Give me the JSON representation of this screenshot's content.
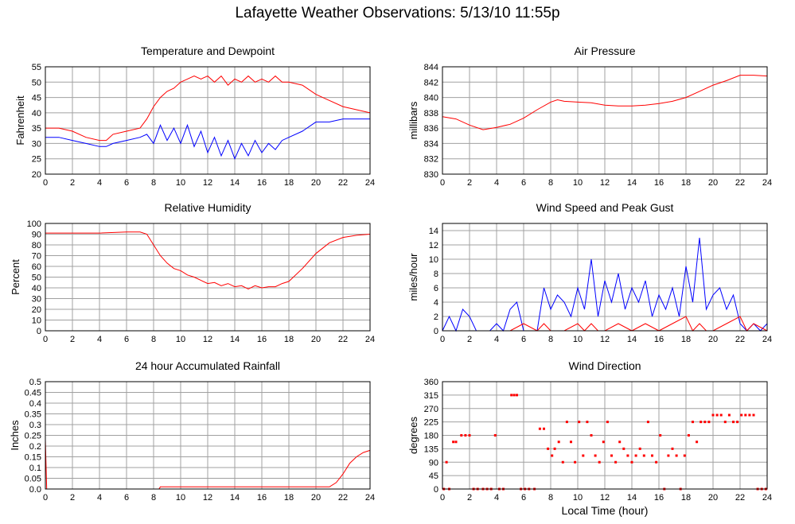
{
  "page": {
    "title": "Lafayette Weather Observations: 5/13/10 11:55p",
    "footer_xlabel": "Local Time (hour)"
  },
  "colors": {
    "red": "#ff0000",
    "blue": "#0000ff",
    "grid": "#a0a0a0",
    "frame": "#000000"
  },
  "chart_data": [
    {
      "id": "temp",
      "type": "line",
      "title": "Temperature and Dewpoint",
      "xlabel": "",
      "ylabel": "Fahrenheit",
      "xlim": [
        0,
        24
      ],
      "ylim": [
        20,
        55
      ],
      "xticks": [
        0,
        2,
        4,
        6,
        8,
        10,
        12,
        14,
        16,
        18,
        20,
        22,
        24
      ],
      "yticks": [
        20,
        25,
        30,
        35,
        40,
        45,
        50,
        55
      ],
      "grid": true,
      "series": [
        {
          "color": "#ff0000",
          "x": [
            0,
            1,
            2,
            3,
            4,
            4.5,
            5,
            6,
            7,
            7.5,
            8,
            8.5,
            9,
            9.5,
            10,
            10.5,
            11,
            11.5,
            12,
            12.5,
            13,
            13.5,
            14,
            14.5,
            15,
            15.5,
            16,
            16.5,
            17,
            17.5,
            18,
            19,
            20,
            21,
            22,
            23,
            24
          ],
          "y": [
            35,
            35,
            34,
            32,
            31,
            31,
            33,
            34,
            35,
            38,
            42,
            45,
            47,
            48,
            50,
            51,
            52,
            51,
            52,
            50,
            52,
            49,
            51,
            50,
            52,
            50,
            51,
            50,
            52,
            50,
            50,
            49,
            46,
            44,
            42,
            41,
            40
          ]
        },
        {
          "color": "#0000ff",
          "x": [
            0,
            1,
            2,
            3,
            4,
            4.5,
            5,
            6,
            7,
            7.5,
            8,
            8.5,
            9,
            9.5,
            10,
            10.5,
            11,
            11.5,
            12,
            12.5,
            13,
            13.5,
            14,
            14.5,
            15,
            15.5,
            16,
            16.5,
            17,
            17.5,
            18,
            19,
            20,
            21,
            22,
            23,
            24
          ],
          "y": [
            32,
            32,
            31,
            30,
            29,
            29,
            30,
            31,
            32,
            33,
            30,
            36,
            31,
            35,
            30,
            36,
            29,
            34,
            27,
            32,
            26,
            31,
            25,
            30,
            26,
            31,
            27,
            30,
            28,
            31,
            32,
            34,
            37,
            37,
            38,
            38,
            38
          ]
        }
      ]
    },
    {
      "id": "pressure",
      "type": "line",
      "title": "Air Pressure",
      "xlabel": "",
      "ylabel": "millibars",
      "xlim": [
        0,
        24
      ],
      "ylim": [
        830,
        844
      ],
      "xticks": [
        0,
        2,
        4,
        6,
        8,
        10,
        12,
        14,
        16,
        18,
        20,
        22,
        24
      ],
      "yticks": [
        830,
        832,
        834,
        836,
        838,
        840,
        842,
        844
      ],
      "grid": true,
      "series": [
        {
          "color": "#ff0000",
          "x": [
            0,
            1,
            2,
            3,
            4,
            5,
            6,
            7,
            8,
            8.5,
            9,
            10,
            11,
            12,
            13,
            14,
            15,
            16,
            17,
            18,
            19,
            20,
            21,
            22,
            23,
            24
          ],
          "y": [
            837.5,
            837.2,
            836.4,
            835.8,
            836.1,
            836.5,
            837.3,
            838.4,
            839.4,
            839.7,
            839.5,
            839.4,
            839.3,
            839.0,
            838.9,
            838.9,
            839.0,
            839.2,
            839.5,
            840.0,
            840.8,
            841.6,
            842.2,
            842.9,
            842.9,
            842.8
          ]
        }
      ]
    },
    {
      "id": "humidity",
      "type": "line",
      "title": "Relative Humidity",
      "xlabel": "",
      "ylabel": "Percent",
      "xlim": [
        0,
        24
      ],
      "ylim": [
        0,
        100
      ],
      "xticks": [
        0,
        2,
        4,
        6,
        8,
        10,
        12,
        14,
        16,
        18,
        20,
        22,
        24
      ],
      "yticks": [
        0,
        10,
        20,
        30,
        40,
        50,
        60,
        70,
        80,
        90,
        100
      ],
      "grid": true,
      "series": [
        {
          "color": "#ff0000",
          "x": [
            0,
            2,
            4,
            6,
            7,
            7.5,
            8,
            8.5,
            9,
            9.5,
            10,
            10.5,
            11,
            11.5,
            12,
            12.5,
            13,
            13.5,
            14,
            14.5,
            15,
            15.5,
            16,
            16.5,
            17,
            17.5,
            18,
            19,
            20,
            21,
            22,
            23,
            24
          ],
          "y": [
            91,
            91,
            91,
            92,
            92,
            90,
            80,
            70,
            63,
            58,
            56,
            52,
            50,
            47,
            44,
            45,
            42,
            44,
            41,
            42,
            39,
            42,
            40,
            41,
            41,
            44,
            46,
            58,
            72,
            82,
            87,
            89,
            90
          ]
        }
      ]
    },
    {
      "id": "wind",
      "type": "line",
      "title": "Wind Speed and Peak Gust",
      "xlabel": "",
      "ylabel": "miles/hour",
      "xlim": [
        0,
        24
      ],
      "ylim": [
        0,
        15
      ],
      "xticks": [
        0,
        2,
        4,
        6,
        8,
        10,
        12,
        14,
        16,
        18,
        20,
        22,
        24
      ],
      "yticks": [
        0,
        2,
        4,
        6,
        8,
        10,
        12,
        14
      ],
      "grid": true,
      "series": [
        {
          "color": "#0000ff",
          "x": [
            0,
            0.5,
            1,
            1.5,
            2,
            2.5,
            3,
            3.5,
            4,
            4.5,
            5,
            5.5,
            6,
            6.5,
            7,
            7.5,
            8,
            8.5,
            9,
            9.5,
            10,
            10.5,
            11,
            11.5,
            12,
            12.5,
            13,
            13.5,
            14,
            14.5,
            15,
            15.5,
            16,
            16.5,
            17,
            17.5,
            18,
            18.5,
            19,
            19.5,
            20,
            20.5,
            21,
            21.5,
            22,
            22.5,
            23,
            23.5,
            24
          ],
          "y": [
            0,
            2,
            0,
            3,
            2,
            0,
            0,
            0,
            1,
            0,
            3,
            4,
            0,
            0,
            0,
            6,
            3,
            5,
            4,
            2,
            6,
            3,
            10,
            2,
            7,
            4,
            8,
            3,
            6,
            4,
            7,
            2,
            5,
            3,
            6,
            2,
            9,
            4,
            13,
            3,
            5,
            6,
            3,
            5,
            1,
            0,
            1,
            0,
            1
          ]
        },
        {
          "color": "#ff0000",
          "x": [
            0,
            1,
            2,
            3,
            4,
            5,
            6,
            7,
            7.5,
            8,
            9,
            10,
            10.5,
            11,
            11.5,
            12,
            13,
            14,
            15,
            16,
            17,
            18,
            18.5,
            19,
            19.5,
            20,
            21,
            22,
            22.5,
            23,
            24
          ],
          "y": [
            0,
            0,
            0,
            0,
            0,
            0,
            1,
            0,
            1,
            0,
            0,
            1,
            0,
            1,
            0,
            0,
            1,
            0,
            1,
            0,
            1,
            2,
            0,
            1,
            0,
            0,
            1,
            2,
            0,
            1,
            0
          ]
        }
      ]
    },
    {
      "id": "rain",
      "type": "line",
      "title": "24 hour Accumulated Rainfall",
      "xlabel": "",
      "ylabel": "Inches",
      "xlim": [
        0,
        24
      ],
      "ylim": [
        0,
        0.5
      ],
      "xticks": [
        0,
        2,
        4,
        6,
        8,
        10,
        12,
        14,
        16,
        18,
        20,
        22,
        24
      ],
      "yticks": [
        0,
        0.05,
        0.1,
        0.15,
        0.2,
        0.25,
        0.3,
        0.35,
        0.4,
        0.45,
        0.5
      ],
      "ytick_labels": [
        "0.0",
        "0.05",
        "0.1",
        "0.15",
        "0.2",
        "0.25",
        "0.3",
        "0.35",
        "0.4",
        "0.45",
        "0.5"
      ],
      "grid": true,
      "series": [
        {
          "color": "#ff0000",
          "x": [
            0,
            0.1,
            0.2,
            8.4,
            8.5,
            21,
            21.5,
            22,
            22.5,
            23,
            23.5,
            24
          ],
          "y": [
            0.23,
            0.0,
            0.0,
            0.0,
            0.01,
            0.01,
            0.03,
            0.07,
            0.12,
            0.15,
            0.17,
            0.18
          ]
        }
      ]
    },
    {
      "id": "direction",
      "type": "scatter",
      "title": "Wind Direction",
      "xlabel": "Local Time (hour)",
      "ylabel": "degrees",
      "xlim": [
        0,
        24
      ],
      "ylim": [
        0,
        360
      ],
      "xticks": [
        0,
        2,
        4,
        6,
        8,
        10,
        12,
        14,
        16,
        18,
        20,
        22,
        24
      ],
      "yticks": [
        0,
        45,
        90,
        135,
        180,
        225,
        270,
        315,
        360
      ],
      "grid": true,
      "series": [
        {
          "color": "#ff0000",
          "x": [
            0.1,
            0.3,
            0.5,
            0.8,
            1.0,
            1.4,
            1.7,
            2.0,
            2.3,
            2.6,
            3.0,
            3.3,
            3.6,
            3.9,
            4.2,
            4.5,
            5.1,
            5.3,
            5.5,
            5.8,
            6.1,
            6.4,
            6.8,
            7.2,
            7.5,
            7.8,
            8.1,
            8.3,
            8.6,
            8.9,
            9.2,
            9.5,
            9.8,
            10.1,
            10.4,
            10.7,
            11.0,
            11.3,
            11.6,
            11.9,
            12.2,
            12.5,
            12.8,
            13.1,
            13.4,
            13.7,
            14.0,
            14.3,
            14.6,
            14.9,
            15.2,
            15.5,
            15.8,
            16.1,
            16.4,
            16.7,
            17.0,
            17.3,
            17.6,
            17.9,
            18.2,
            18.5,
            18.8,
            19.1,
            19.4,
            19.7,
            20.0,
            20.3,
            20.6,
            20.9,
            21.2,
            21.5,
            21.8,
            22.1,
            22.4,
            22.7,
            23.0,
            23.3,
            23.6,
            23.9
          ],
          "y": [
            0,
            90,
            0,
            158,
            158,
            180,
            180,
            180,
            0,
            0,
            0,
            0,
            0,
            180,
            0,
            0,
            315,
            315,
            315,
            0,
            0,
            0,
            0,
            202,
            202,
            135,
            112,
            135,
            158,
            90,
            225,
            158,
            90,
            225,
            112,
            225,
            180,
            112,
            90,
            158,
            225,
            112,
            90,
            158,
            135,
            112,
            90,
            112,
            135,
            112,
            225,
            112,
            90,
            180,
            0,
            112,
            135,
            112,
            0,
            112,
            180,
            225,
            158,
            225,
            225,
            225,
            248,
            248,
            248,
            225,
            248,
            225,
            225,
            248,
            248,
            248,
            248,
            0,
            0,
            0
          ]
        }
      ]
    }
  ]
}
